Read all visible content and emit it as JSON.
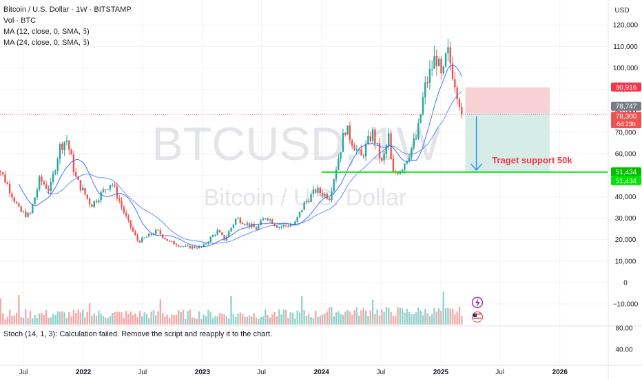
{
  "header": {
    "title": "Bitcoin / U.S. Dollar · 1W · BITSTAMP",
    "indicators": [
      "Vol · BTC",
      "MA (12, close, 0, SMA, 5)",
      "MA (24, close, 0, SMA, 5)"
    ]
  },
  "watermark": {
    "symbol": "BTCUSD, 1W",
    "name": "Bitcoin / U.S. Dollar"
  },
  "stoch_message": "Stoch (14, 1, 3): Calculation failed. Remove the script and reapply it to the chart.",
  "currency": "USD",
  "colors": {
    "up": "#26a69a",
    "down": "#ef5350",
    "ma": "#2962ff",
    "support": "#00e600",
    "stop_zone": "#f7c9cc",
    "target_zone": "#cfe9e3",
    "arrow": "#2196f3",
    "annotation": "#f23645"
  },
  "chart_data": [
    {
      "type": "candlestick",
      "interval": "1W",
      "symbol": "BTCUSD",
      "y_axis": {
        "unit": "USD",
        "ticks": [
          120000,
          110000,
          100000,
          90000,
          80000,
          70000,
          60000,
          50000,
          40000,
          30000,
          20000,
          10000,
          0,
          -10000
        ]
      },
      "x_axis": {
        "ticks": [
          {
            "label": "Jul",
            "date": "2021-07-01"
          },
          {
            "label": "2022",
            "date": "2022-01-01"
          },
          {
            "label": "Jul",
            "date": "2022-07-01"
          },
          {
            "label": "2023",
            "date": "2023-01-01"
          },
          {
            "label": "Jul",
            "date": "2023-07-01"
          },
          {
            "label": "2024",
            "date": "2024-01-01"
          },
          {
            "label": "Jul",
            "date": "2024-07-01"
          },
          {
            "label": "2025",
            "date": "2025-01-01"
          },
          {
            "label": "Jul",
            "date": "2025-07-01"
          },
          {
            "label": "2026",
            "date": "2026-01-01"
          }
        ]
      },
      "price_path": [
        [
          "2021-04-01",
          58000
        ],
        [
          "2021-05-15",
          45000
        ],
        [
          "2021-06-20",
          33000
        ],
        [
          "2021-07-20",
          31000
        ],
        [
          "2021-08-20",
          48000
        ],
        [
          "2021-09-20",
          43000
        ],
        [
          "2021-10-20",
          63000
        ],
        [
          "2021-11-10",
          67000
        ],
        [
          "2021-12-10",
          48000
        ],
        [
          "2022-01-25",
          36000
        ],
        [
          "2022-03-28",
          47000
        ],
        [
          "2022-05-15",
          29000
        ],
        [
          "2022-06-18",
          19000
        ],
        [
          "2022-08-15",
          24000
        ],
        [
          "2022-09-20",
          19000
        ],
        [
          "2022-11-10",
          16500
        ],
        [
          "2022-12-31",
          16500
        ],
        [
          "2023-02-15",
          24000
        ],
        [
          "2023-03-10",
          20000
        ],
        [
          "2023-04-15",
          30000
        ],
        [
          "2023-06-15",
          25000
        ],
        [
          "2023-07-15",
          31000
        ],
        [
          "2023-08-20",
          26000
        ],
        [
          "2023-10-10",
          27000
        ],
        [
          "2023-11-10",
          37000
        ],
        [
          "2023-12-15",
          43000
        ],
        [
          "2024-01-25",
          40000
        ],
        [
          "2024-03-14",
          72000
        ],
        [
          "2024-05-01",
          58000
        ],
        [
          "2024-06-05",
          70000
        ],
        [
          "2024-07-05",
          55000
        ],
        [
          "2024-07-25",
          68000
        ],
        [
          "2024-08-05",
          50000
        ],
        [
          "2024-09-05",
          54000
        ],
        [
          "2024-10-20",
          68000
        ],
        [
          "2024-11-12",
          90000
        ],
        [
          "2024-12-17",
          106000
        ],
        [
          "2025-01-05",
          93000
        ],
        [
          "2025-01-20",
          108000
        ],
        [
          "2025-02-10",
          96000
        ],
        [
          "2025-02-28",
          84000
        ],
        [
          "2025-03-10",
          78300
        ]
      ],
      "moving_averages": [
        {
          "name": "MA (12, close, 0, SMA, 5)",
          "period": 12
        },
        {
          "name": "MA (24, close, 0, SMA, 5)",
          "period": 24
        }
      ],
      "volume_axis": {
        "ticks": [
          80.0,
          40.0
        ]
      },
      "price_labels": [
        {
          "value": 90916,
          "text": "90,916",
          "color": "#f23645"
        },
        {
          "value": 78747,
          "text": "78,747",
          "color": "#787b86"
        },
        {
          "value": 78300,
          "text": "78,300",
          "sub": "6d 23h",
          "color": "#ef5350"
        },
        {
          "value": 51434,
          "text": "51,434",
          "color": "#00c000"
        },
        {
          "value": 51434,
          "text": "51,434",
          "color": "#00e600"
        }
      ],
      "short_position": {
        "entry": 78747,
        "stop": 90916,
        "target": 51434,
        "start": "2025-03-17",
        "end": "2025-12-01"
      },
      "support_line": {
        "value": 51434,
        "start": "2024-01-01"
      },
      "annotations": [
        {
          "text": "Traget support 50k",
          "value": 56800,
          "date": "2025-07-15"
        }
      ],
      "bottom_icons": [
        "lightning-icon",
        "flag-icon"
      ]
    }
  ]
}
